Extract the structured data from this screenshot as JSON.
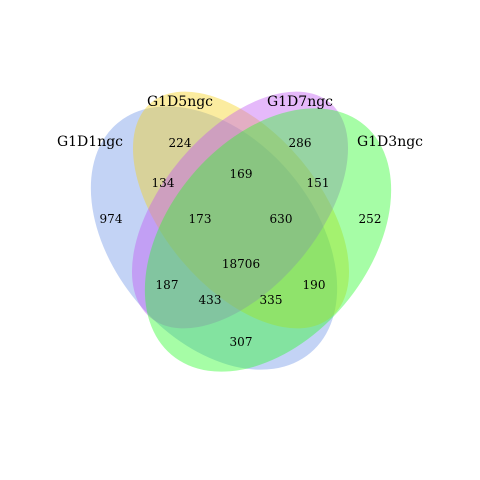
{
  "sets": [
    {
      "name": "G1D1ngc",
      "color": "#6f95e8"
    },
    {
      "name": "G1D5ngc",
      "color": "#f5d21c"
    },
    {
      "name": "G1D7ngc",
      "color": "#c257f2"
    },
    {
      "name": "G1D3ngc",
      "color": "#2cfa2a"
    }
  ],
  "regions": {
    "only_d1": "974",
    "only_d5": "224",
    "only_d7": "286",
    "only_d3": "252",
    "d1_d5": "134",
    "d5_d7": "169",
    "d7_d3": "151",
    "d1_d5_d7": "173",
    "d5_d7_d3": "630",
    "all": "18706",
    "d1_d7": "187",
    "d5_d3": "190",
    "d1_d7_d3": "433",
    "d1_d5_d3": "335",
    "d1_d3": "307"
  }
}
